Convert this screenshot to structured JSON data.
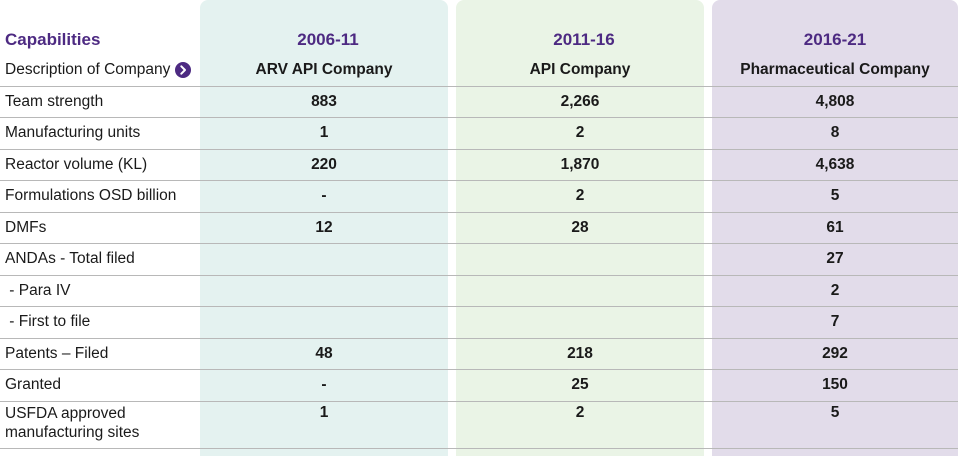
{
  "header": {
    "capabilities": "Capabilities",
    "periods": [
      "2006-11",
      "2011-16",
      "2016-21"
    ]
  },
  "rows": [
    {
      "label": "Description of Company",
      "values": [
        "ARV API Company",
        "API Company",
        "Pharmaceutical Company"
      ]
    },
    {
      "label": "Team strength",
      "values": [
        "883",
        "2,266",
        "4,808"
      ]
    },
    {
      "label": "Manufacturing units",
      "values": [
        "1",
        "2",
        "8"
      ]
    },
    {
      "label": "Reactor volume (KL)",
      "values": [
        "220",
        "1,870",
        "4,638"
      ]
    },
    {
      "label": "Formulations OSD billion",
      "values": [
        "-",
        "2",
        "5"
      ]
    },
    {
      "label": "DMFs",
      "values": [
        "12",
        "28",
        "61"
      ]
    },
    {
      "label": "ANDAs - Total filed",
      "values": [
        "",
        "",
        "27"
      ]
    },
    {
      "label": " - Para IV",
      "values": [
        "",
        "",
        "2"
      ]
    },
    {
      "label": " - First to file",
      "values": [
        "",
        "",
        "7"
      ]
    },
    {
      "label": "Patents – Filed",
      "values": [
        "48",
        "218",
        "292"
      ]
    },
    {
      "label": "Granted",
      "values": [
        "-",
        "25",
        "150"
      ]
    },
    {
      "label": "USFDA approved manufacturing sites",
      "values": [
        "1",
        "2",
        "5"
      ]
    }
  ],
  "colors": {
    "header_text": "#4d2a82",
    "col1_bg": "#e4f2f0",
    "col2_bg": "#eaf4e6",
    "col3_bg": "#e2dcea"
  },
  "icons": {
    "description_arrow": "chevron-right-circle-icon"
  }
}
